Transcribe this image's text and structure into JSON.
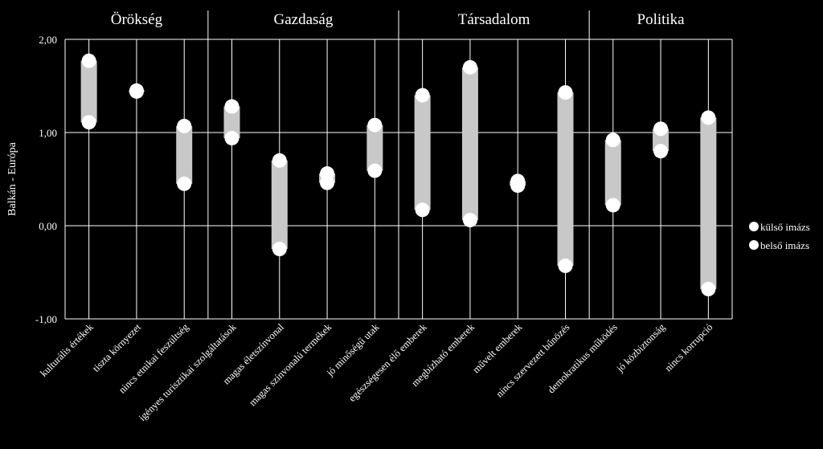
{
  "chart_data": {
    "type": "range-dot",
    "ylabel": "Balkán - Európa",
    "ylim": [
      -1,
      2
    ],
    "yticks": [
      -1,
      0,
      1,
      2
    ],
    "ytick_labels": [
      "-1,00",
      "0,00",
      "1,00",
      "2,00"
    ],
    "grid": true,
    "legend_position": "right",
    "groups": [
      {
        "label": "Örökség",
        "categories": 3
      },
      {
        "label": "Gazdaság",
        "categories": 4
      },
      {
        "label": "Társadalom",
        "categories": 4
      },
      {
        "label": "Politika",
        "categories": 3
      }
    ],
    "categories": [
      "kulturális értékek",
      "tiszta környezet",
      "nincs etnikai feszültség",
      "igényes turisztikai szolgáltatások",
      "magas életszínvonal",
      "magas színvonalú termékek",
      "jó minőségű utak",
      "egészségesen élő emberek",
      "megbízható emberek",
      "művelt emberek",
      "nincs szervezett bűnözés",
      "demokratikus működés",
      "jó közbiztonság",
      "nincs korrupció"
    ],
    "series": [
      {
        "name": "külső imázs",
        "values": [
          1.77,
          1.45,
          1.07,
          1.28,
          0.7,
          0.56,
          1.08,
          1.4,
          1.7,
          0.48,
          1.43,
          0.92,
          1.04,
          1.16
        ]
      },
      {
        "name": "belső imázs",
        "values": [
          1.11,
          1.44,
          0.45,
          0.94,
          -0.25,
          0.46,
          0.59,
          0.17,
          0.06,
          0.43,
          -0.43,
          0.22,
          0.8,
          -0.68
        ]
      }
    ],
    "colors": {
      "background": "#000000",
      "grid": "#ffffff",
      "range": "#c8c8c8",
      "marker": "#ffffff"
    }
  }
}
